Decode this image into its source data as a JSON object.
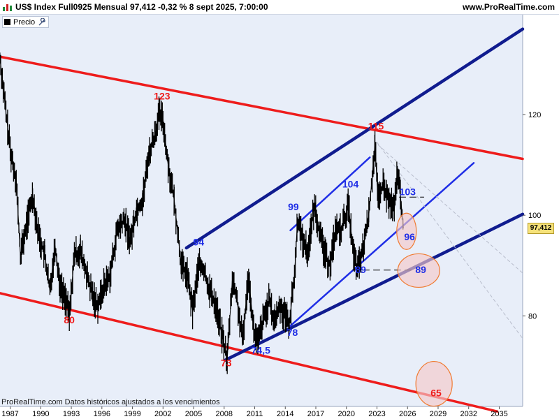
{
  "header": {
    "title": "US$ Index Full0925 Mensual 97,412 -0,32 % 8 sept 2025, 7:00:00",
    "brand": "www.ProRealTime.com"
  },
  "legend": {
    "label": "Precio"
  },
  "footer": {
    "note": "ProRealTime.com  Datos históricos ajustados a los vencimientos"
  },
  "last_price_label": "97,412",
  "colors": {
    "background": "#e8eef9",
    "price": "#000000",
    "red_lines": "#ee1c1c",
    "navy_lines": "#101c8f",
    "blue_lines": "#1f2ee6",
    "highlight_fill": "#f4c9c9",
    "highlight_stroke": "#f07a30",
    "last_price_bg": "#f6e27a"
  },
  "chart_data": {
    "type": "line",
    "title": "US$ Index Full0925 Mensual",
    "x_ticks": [
      "1987",
      "1990",
      "1993",
      "1996",
      "1999",
      "2002",
      "2005",
      "2008",
      "2011",
      "2014",
      "2017",
      "2020",
      "2023",
      "2026",
      "2029",
      "2032",
      "2035"
    ],
    "y_ticks": [
      80,
      100,
      120
    ],
    "ylim": [
      62,
      140
    ],
    "xlim": [
      1986.0,
      2037.3
    ],
    "y_axis_side": "right",
    "last_value": 97.412,
    "series": [
      {
        "values_xy": [
          [
            1985.9,
            133
          ],
          [
            1986.5,
            122
          ],
          [
            1987.0,
            113
          ],
          [
            1987.6,
            107
          ],
          [
            1988.0,
            92
          ],
          [
            1988.6,
            98
          ],
          [
            1989.2,
            104
          ],
          [
            1989.8,
            96
          ],
          [
            1990.4,
            92
          ],
          [
            1990.9,
            85
          ],
          [
            1991.4,
            94
          ],
          [
            1991.9,
            86
          ],
          [
            1992.5,
            83
          ],
          [
            1992.8,
            80
          ],
          [
            1993.3,
            92
          ],
          [
            1993.9,
            93
          ],
          [
            1994.5,
            88
          ],
          [
            1995.1,
            84
          ],
          [
            1995.6,
            82
          ],
          [
            1996.2,
            86
          ],
          [
            1996.8,
            88
          ],
          [
            1997.5,
            97
          ],
          [
            1998.2,
            99
          ],
          [
            1998.8,
            95
          ],
          [
            1999.4,
            101
          ],
          [
            2000.0,
            103
          ],
          [
            2000.6,
            112
          ],
          [
            2001.2,
            116
          ],
          [
            2001.6,
            120
          ],
          [
            2002.0,
            119
          ],
          [
            2002.5,
            110
          ],
          [
            2003.1,
            103
          ],
          [
            2003.8,
            90
          ],
          [
            2004.4,
            88
          ],
          [
            2004.9,
            81
          ],
          [
            2005.5,
            90
          ],
          [
            2006.0,
            89
          ],
          [
            2006.6,
            85
          ],
          [
            2007.2,
            82
          ],
          [
            2007.8,
            76
          ],
          [
            2008.3,
            71.5
          ],
          [
            2008.8,
            87
          ],
          [
            2009.2,
            84
          ],
          [
            2009.8,
            75
          ],
          [
            2010.4,
            88
          ],
          [
            2010.9,
            77
          ],
          [
            2011.3,
            74.5
          ],
          [
            2011.8,
            79
          ],
          [
            2012.4,
            83
          ],
          [
            2012.9,
            79
          ],
          [
            2013.5,
            82
          ],
          [
            2014.0,
            80
          ],
          [
            2014.4,
            78.5
          ],
          [
            2014.9,
            88
          ],
          [
            2015.2,
            99
          ],
          [
            2015.7,
            95
          ],
          [
            2016.2,
            93
          ],
          [
            2016.9,
            102
          ],
          [
            2017.4,
            96
          ],
          [
            2017.9,
            92
          ],
          [
            2018.4,
            90
          ],
          [
            2018.9,
            97
          ],
          [
            2019.5,
            97
          ],
          [
            2020.2,
            102
          ],
          [
            2020.7,
            92
          ],
          [
            2021.1,
            89
          ],
          [
            2021.6,
            93
          ],
          [
            2022.2,
            100
          ],
          [
            2022.8,
            114
          ],
          [
            2023.1,
            103
          ],
          [
            2023.6,
            106
          ],
          [
            2024.1,
            103
          ],
          [
            2024.7,
            101
          ],
          [
            2025.0,
            109
          ],
          [
            2025.3,
            104
          ],
          [
            2025.6,
            97.4
          ]
        ]
      }
    ],
    "annotations": [
      {
        "text": "123",
        "color": "red",
        "x": 2001.9,
        "y": 123
      },
      {
        "text": "80",
        "color": "red",
        "x": 1992.8,
        "y": 78.5
      },
      {
        "text": "73",
        "color": "red",
        "x": 2008.2,
        "y": 70
      },
      {
        "text": "115",
        "color": "red",
        "x": 2022.9,
        "y": 117
      },
      {
        "text": "65",
        "color": "red",
        "x": 2028.8,
        "y": 64
      },
      {
        "text": "94",
        "color": "blue",
        "x": 2005.5,
        "y": 94
      },
      {
        "text": "74,5",
        "color": "blue",
        "x": 2011.6,
        "y": 72.5
      },
      {
        "text": "78",
        "color": "blue",
        "x": 2014.7,
        "y": 76
      },
      {
        "text": "99",
        "color": "blue",
        "x": 2014.8,
        "y": 101
      },
      {
        "text": "104",
        "color": "blue",
        "x": 2020.4,
        "y": 105.5
      },
      {
        "text": "89",
        "color": "blue",
        "x": 2021.4,
        "y": 88.5
      },
      {
        "text": "103",
        "color": "blue",
        "x": 2026.0,
        "y": 104
      },
      {
        "text": "96",
        "color": "blue",
        "x": 2026.2,
        "y": 95
      },
      {
        "text": "89",
        "color": "blue",
        "x": 2027.3,
        "y": 88.5
      }
    ],
    "trendlines": [
      {
        "color": "red",
        "from": [
          1986.0,
          131.5
        ],
        "to": [
          2037.3,
          111.2
        ]
      },
      {
        "color": "red",
        "from": [
          1986.0,
          84.5
        ],
        "to": [
          2034.8,
          61.0
        ]
      },
      {
        "color": "navy",
        "from": [
          2004.3,
          93.5
        ],
        "to": [
          2037.3,
          137.0
        ]
      },
      {
        "color": "navy",
        "from": [
          2008.1,
          71.2
        ],
        "to": [
          2037.3,
          100.2
        ]
      },
      {
        "color": "blue",
        "from": [
          2014.5,
          78.0
        ],
        "to": [
          2032.5,
          110.4
        ]
      },
      {
        "color": "blue",
        "from": [
          2014.5,
          97.0
        ],
        "to": [
          2022.3,
          111.5
        ]
      },
      {
        "color": "dashed",
        "from": [
          2020.6,
          89.1
        ],
        "to": [
          2026.4,
          89.1
        ]
      },
      {
        "color": "dashed",
        "from": [
          2025.2,
          103.6
        ],
        "to": [
          2027.6,
          103.6
        ]
      },
      {
        "color": "faint",
        "from": [
          2023.0,
          114.5
        ],
        "to": [
          2037.3,
          75.5
        ]
      },
      {
        "color": "faint",
        "from": [
          2023.1,
          114.0
        ],
        "to": [
          2037.3,
          88.5
        ]
      }
    ],
    "highlights": [
      {
        "x": 2025.9,
        "y": 96.8
      },
      {
        "x": 2027.1,
        "y": 89.0
      },
      {
        "x": 2028.6,
        "y": 66.5
      }
    ]
  }
}
